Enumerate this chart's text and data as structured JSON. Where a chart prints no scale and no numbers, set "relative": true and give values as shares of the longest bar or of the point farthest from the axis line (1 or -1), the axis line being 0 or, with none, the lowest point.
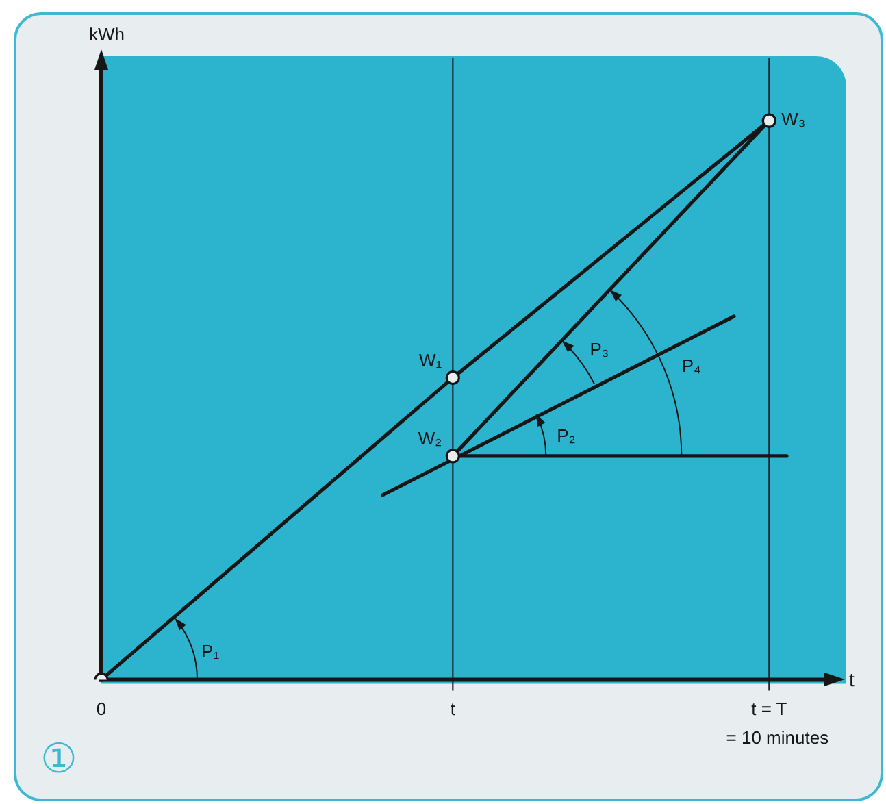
{
  "chart_data": {
    "type": "line",
    "ylabel": "kWh",
    "xlabel": "t",
    "relative": true,
    "tick_labels": "x",
    "categories": [
      "0",
      null,
      null,
      null,
      null,
      null,
      null,
      null,
      null,
      null,
      null,
      null,
      null,
      null,
      null,
      null,
      null,
      null,
      null,
      null,
      "t",
      null,
      null,
      null,
      null,
      null,
      null,
      null,
      null,
      null,
      null,
      null,
      null,
      null,
      null,
      null,
      null,
      null,
      "t = T",
      null,
      null,
      null,
      null
    ],
    "series": [
      {
        "color": "#161616",
        "marker": "circle",
        "values": [
          0,
          null,
          null,
          null,
          null,
          null,
          null,
          null,
          null,
          null,
          null,
          null,
          null,
          null,
          null,
          null,
          null,
          null,
          null,
          null,
          0.54,
          null,
          null,
          null,
          null,
          null,
          null,
          null,
          null,
          null,
          null,
          null,
          null,
          null,
          null,
          null,
          null,
          null,
          1,
          null,
          null,
          null,
          null
        ]
      },
      {
        "color": "#161616",
        "marker": "circle",
        "values": [
          null,
          null,
          null,
          null,
          null,
          null,
          null,
          null,
          null,
          null,
          null,
          null,
          null,
          null,
          null,
          null,
          null,
          null,
          null,
          null,
          0.4,
          null,
          null,
          null,
          null,
          null,
          null,
          null,
          null,
          null,
          null,
          null,
          null,
          null,
          null,
          null,
          null,
          null,
          1,
          null,
          null,
          null,
          null
        ]
      },
      {
        "color": "#161616",
        "marker": "none",
        "values": [
          null,
          null,
          null,
          null,
          null,
          null,
          null,
          null,
          null,
          null,
          null,
          null,
          null,
          null,
          null,
          null,
          0.33,
          null,
          null,
          null,
          null,
          null,
          null,
          null,
          null,
          null,
          null,
          null,
          null,
          null,
          null,
          null,
          null,
          null,
          null,
          null,
          0.65,
          null,
          null,
          null,
          null,
          null,
          null
        ]
      },
      {
        "color": "#161616",
        "marker": "none",
        "values": [
          null,
          null,
          null,
          null,
          null,
          null,
          null,
          null,
          null,
          null,
          null,
          null,
          null,
          null,
          null,
          null,
          null,
          null,
          null,
          null,
          0.4,
          null,
          null,
          null,
          null,
          null,
          null,
          null,
          null,
          null,
          null,
          null,
          null,
          null,
          null,
          null,
          null,
          null,
          null,
          0.4,
          null,
          null,
          null
        ]
      }
    ],
    "ref_lines": [
      {
        "axis": "x",
        "value": "t"
      },
      {
        "axis": "x",
        "value": "t = T"
      }
    ],
    "annotations": [
      {
        "text": "W₁",
        "x": "t",
        "y": 0.54
      },
      {
        "text": "W₂",
        "x": "t",
        "y": 0.4
      },
      {
        "text": "W₃",
        "x": "t = T",
        "y": 1
      },
      "P₁",
      "P₂",
      "P₃",
      "P₄",
      "= 10 minutes",
      "①"
    ]
  }
}
